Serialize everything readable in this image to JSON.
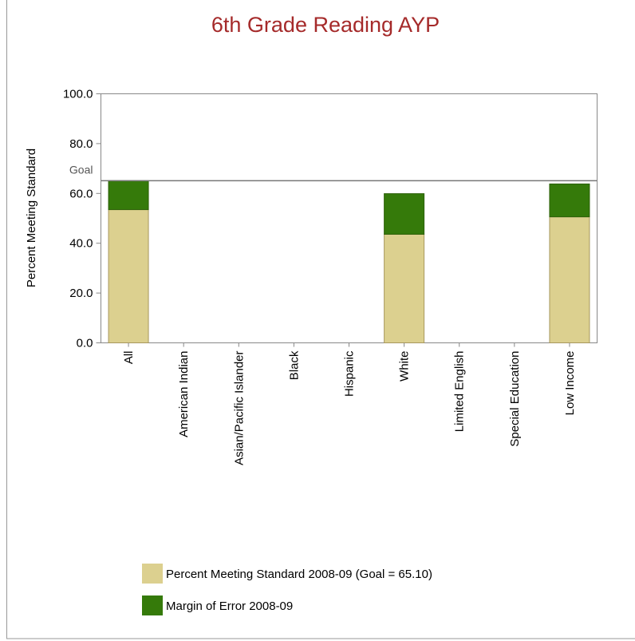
{
  "chart_data": {
    "type": "stacked_bar",
    "title": "6th Grade Reading AYP",
    "y_label": "Percent Meeting Standard",
    "categories": [
      "All",
      "American Indian",
      "Asian/Pacific Islander",
      "Black",
      "Hispanic",
      "White",
      "Limited English",
      "Special Education",
      "Low Income"
    ],
    "series": [
      {
        "name": "Percent Meeting Standard 2008-09 (Goal = 65.10)",
        "color": "#dcd08f",
        "values": [
          53.5,
          null,
          null,
          null,
          null,
          43.6,
          null,
          null,
          50.6
        ]
      },
      {
        "name": "Margin of Error 2008-09",
        "color": "#357a0a",
        "values": [
          11.6,
          null,
          null,
          null,
          null,
          16.3,
          null,
          null,
          13.2
        ]
      }
    ],
    "goal": {
      "label": "Goal",
      "value": 65.1
    },
    "ylim": [
      0,
      100
    ],
    "yticks": [
      {
        "value": 0,
        "label": "0.0"
      },
      {
        "value": 20,
        "label": "20.0"
      },
      {
        "value": 40,
        "label": "40.0"
      },
      {
        "value": 60,
        "label": "60.0"
      },
      {
        "value": 80,
        "label": "80.0"
      },
      {
        "value": 100,
        "label": "100.0"
      }
    ]
  }
}
